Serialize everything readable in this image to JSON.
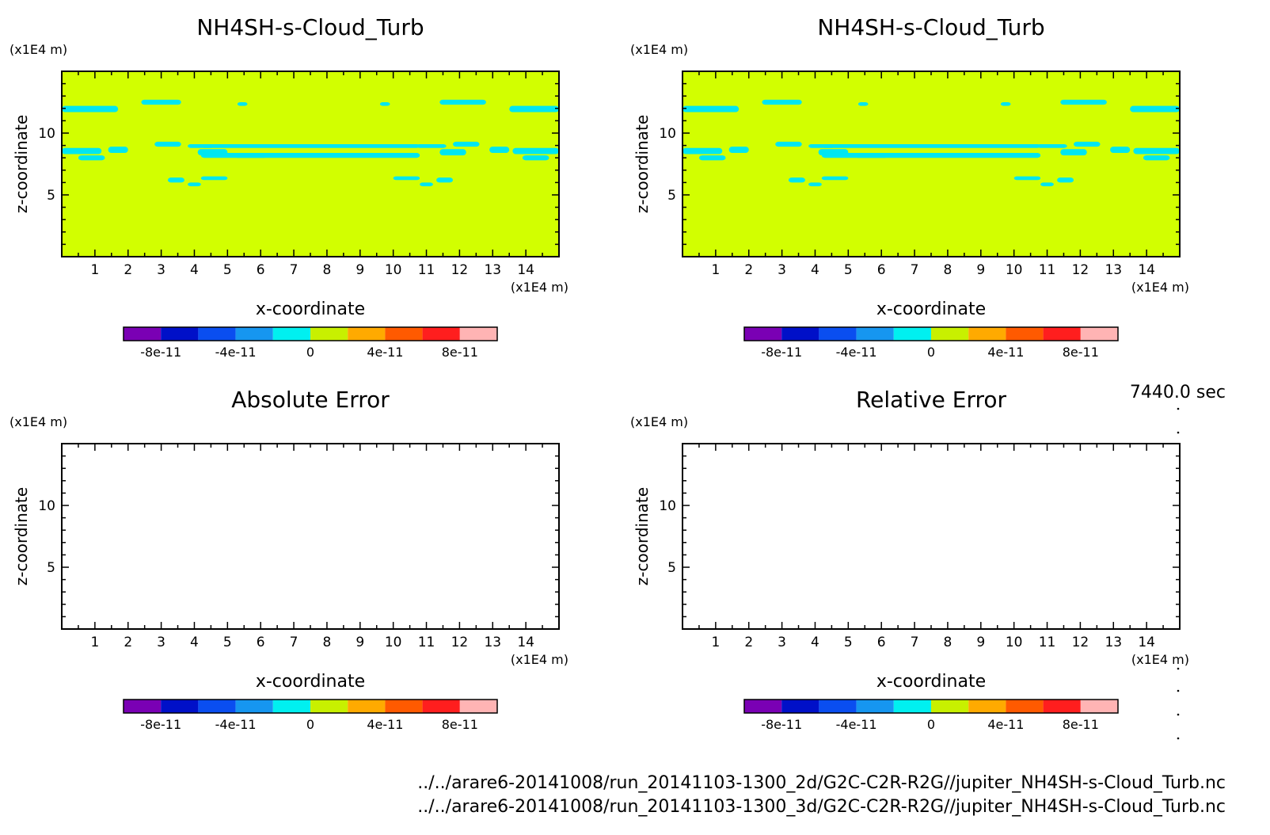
{
  "time_label": "7440.0 sec",
  "file_paths": [
    "../../arare6-20141008/run_20141103-1300_2d/G2C-C2R-R2G//jupiter_NH4SH-s-Cloud_Turb.nc",
    "../../arare6-20141008/run_20141103-1300_3d/G2C-C2R-R2G//jupiter_NH4SH-s-Cloud_Turb.nc"
  ],
  "colors": {
    "levels": [
      "#7a00b4",
      "#0010c8",
      "#0a4ef0",
      "#1696f0",
      "#00f0f0",
      "#c8f000",
      "#ffaa00",
      "#ff5a00",
      "#ff1e1e",
      "#ffb4b4"
    ],
    "background_field": "#d2ff00",
    "cloud_patches": "#00e6f0"
  },
  "chart_data": [
    {
      "type": "heatmap",
      "title": "NH4SH-s-Cloud_Turb",
      "xlabel": "x-coordinate",
      "ylabel": "z-coordinate",
      "x_unit": "(x1E4 m)",
      "y_unit": "(x1E4 m)",
      "xlim": [
        0,
        15
      ],
      "ylim": [
        0,
        15
      ],
      "xticks": [
        "1",
        "2",
        "3",
        "4",
        "5",
        "6",
        "7",
        "8",
        "9",
        "10",
        "11",
        "12",
        "13",
        "14"
      ],
      "yticks": [
        "5",
        "10"
      ],
      "field": "near-zero positive (~2e-11) everywhere with thin near-zero bands at z≈8.5 and z≈12",
      "colorbar": {
        "bounds": [
          -1e-10,
          1e-10
        ],
        "n_levels": 10,
        "tick_labels": [
          "-8e-11",
          "-4e-11",
          "0",
          "4e-11",
          "8e-11"
        ]
      }
    },
    {
      "type": "heatmap",
      "title": "NH4SH-s-Cloud_Turb",
      "xlabel": "x-coordinate",
      "ylabel": "z-coordinate",
      "x_unit": "(x1E4 m)",
      "y_unit": "(x1E4 m)",
      "xlim": [
        0,
        15
      ],
      "ylim": [
        0,
        15
      ],
      "xticks": [
        "1",
        "2",
        "3",
        "4",
        "5",
        "6",
        "7",
        "8",
        "9",
        "10",
        "11",
        "12",
        "13",
        "14"
      ],
      "yticks": [
        "5",
        "10"
      ],
      "field": "identical to left panel",
      "colorbar": {
        "bounds": [
          -1e-10,
          1e-10
        ],
        "n_levels": 10,
        "tick_labels": [
          "-8e-11",
          "-4e-11",
          "0",
          "4e-11",
          "8e-11"
        ]
      }
    },
    {
      "type": "heatmap",
      "title": "Absolute Error",
      "xlabel": "x-coordinate",
      "ylabel": "z-coordinate",
      "x_unit": "(x1E4 m)",
      "y_unit": "(x1E4 m)",
      "xlim": [
        0,
        15
      ],
      "ylim": [
        0,
        15
      ],
      "xticks": [
        "1",
        "2",
        "3",
        "4",
        "5",
        "6",
        "7",
        "8",
        "9",
        "10",
        "11",
        "12",
        "13",
        "14"
      ],
      "yticks": [
        "5",
        "10"
      ],
      "field": "blank (no shading)",
      "colorbar": {
        "bounds": [
          -1e-10,
          1e-10
        ],
        "n_levels": 10,
        "tick_labels": [
          "-8e-11",
          "-4e-11",
          "0",
          "4e-11",
          "8e-11"
        ]
      }
    },
    {
      "type": "heatmap",
      "title": "Relative Error",
      "xlabel": "x-coordinate",
      "ylabel": "z-coordinate",
      "x_unit": "(x1E4 m)",
      "y_unit": "(x1E4 m)",
      "xlim": [
        0,
        15
      ],
      "ylim": [
        0,
        15
      ],
      "xticks": [
        "1",
        "2",
        "3",
        "4",
        "5",
        "6",
        "7",
        "8",
        "9",
        "10",
        "11",
        "12",
        "13",
        "14"
      ],
      "yticks": [
        "5",
        "10"
      ],
      "field": "blank (no shading)",
      "colorbar": {
        "bounds": [
          -1e-10,
          1e-10
        ],
        "n_levels": 10,
        "tick_labels": [
          "-8e-11",
          "-4e-11",
          "0",
          "4e-11",
          "8e-11"
        ]
      }
    }
  ]
}
